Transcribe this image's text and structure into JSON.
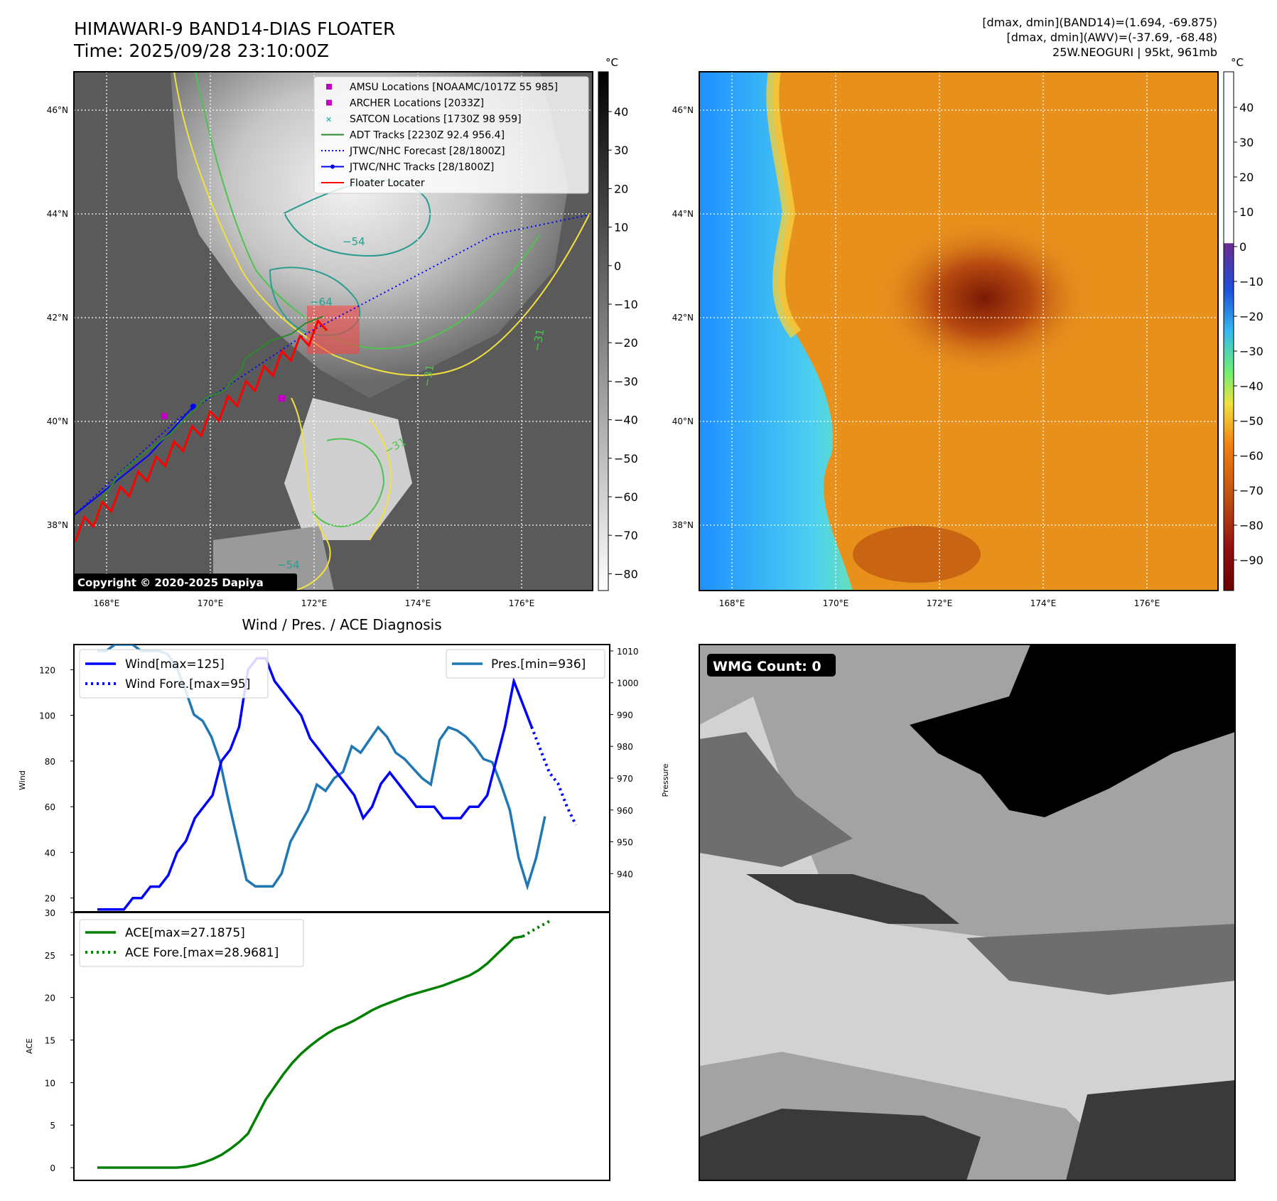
{
  "header": {
    "title_line1": "HIMAWARI-9 BAND14-DIAS FLOATER",
    "title_line2": "Time: 2025/09/28 23:10:00Z",
    "stats_line1": "[dmax, dmin](BAND14)=(1.694, -69.875)",
    "stats_line2": "[dmax, dmin](AWV)=(-37.69, -68.48)",
    "stats_line3": "25W.NEOGURI | 95kt, 961mb"
  },
  "colors": {
    "wind": "#0000ff",
    "pres": "#1f77b4",
    "ace": "#008000",
    "track_red": "#ff0000",
    "adt": "#2a8a2a",
    "contour_yellow": "#f2e040",
    "contour_green": "#4fc34f",
    "contour_teal": "#2a9d8f",
    "marker_magenta": "#c000c0",
    "marker_cyan": "#00b0b0"
  },
  "map_ir": {
    "lat_labels": [
      "46°N",
      "44°N",
      "42°N",
      "40°N",
      "38°N"
    ],
    "lon_labels": [
      "168°E",
      "170°E",
      "172°E",
      "174°E",
      "176°E"
    ],
    "colorbar_unit": "°C",
    "colorbar_ticks": [
      "40",
      "30",
      "20",
      "10",
      "0",
      "−10",
      "−20",
      "−30",
      "−40",
      "−50",
      "−60",
      "−70",
      "−80"
    ],
    "copyright": "Copyright © 2020-2025 Dapiya",
    "contour_labels": [
      "−54",
      "−64",
      "−31",
      "−31",
      "−31",
      "−54"
    ],
    "legend": [
      {
        "label": "AMSU Locations [NOAAMC/1017Z 55 985]",
        "kind": "square",
        "color": "#c000c0"
      },
      {
        "label": "ARCHER Locations [2033Z]",
        "kind": "square",
        "color": "#c000c0"
      },
      {
        "label": "SATCON Locations [1730Z 98 959]",
        "kind": "x",
        "color": "#00b0b0"
      },
      {
        "label": "ADT Tracks [2230Z 92.4 956.4]",
        "kind": "line",
        "color": "#2a8a2a"
      },
      {
        "label": "JTWC/NHC Forecast [28/1800Z]",
        "kind": "dotted",
        "color": "#0000ff"
      },
      {
        "label": "JTWC/NHC Tracks [28/1800Z]",
        "kind": "dotline",
        "color": "#0000ff"
      },
      {
        "label": "Floater Locater",
        "kind": "line",
        "color": "#ff0000"
      }
    ]
  },
  "map_awv": {
    "lat_labels": [
      "46°N",
      "44°N",
      "42°N",
      "40°N",
      "38°N"
    ],
    "lon_labels": [
      "168°E",
      "170°E",
      "172°E",
      "174°E",
      "176°E"
    ],
    "colorbar_unit": "°C",
    "colorbar_ticks": [
      "40",
      "30",
      "20",
      "10",
      "0",
      "−10",
      "−20",
      "−30",
      "−40",
      "−50",
      "−60",
      "−70",
      "−80",
      "−90"
    ]
  },
  "wmg": {
    "label": "WMG Count: 0"
  },
  "chart_data": [
    {
      "type": "line",
      "title": "Wind / Pres. / ACE Diagnosis",
      "ylabel": "Wind",
      "ylim": [
        14,
        131
      ],
      "yticks": [
        20,
        40,
        60,
        80,
        100,
        120
      ],
      "series": [
        {
          "name": "Wind[max=125]",
          "style": "solid",
          "values": [
            15,
            15,
            15,
            15,
            20,
            20,
            25,
            25,
            30,
            40,
            45,
            55,
            60,
            65,
            80,
            85,
            95,
            120,
            125,
            125,
            115,
            110,
            105,
            100,
            90,
            85,
            80,
            75,
            70,
            65,
            55,
            60,
            70,
            75,
            70,
            65,
            60,
            60,
            60,
            55,
            55,
            55,
            60,
            60,
            65,
            80,
            95,
            115,
            105,
            95
          ]
        },
        {
          "name": "Wind Fore.[max=95]",
          "style": "dotted",
          "values": [
            95,
            85,
            75,
            70,
            60,
            52
          ]
        }
      ],
      "secondary": {
        "ylabel": "Pressure",
        "ylim": [
          928,
          1012
        ],
        "yticks": [
          940,
          950,
          960,
          970,
          980,
          990,
          1000,
          1010
        ],
        "series": [
          {
            "name": "Pres.[min=936]",
            "values": [
              1010,
              1010,
              1012,
              1012,
              1012,
              1010,
              1010,
              1010,
              1009,
              1005,
              998,
              990,
              988,
              983,
              975,
              962,
              950,
              938,
              936,
              936,
              936,
              940,
              950,
              955,
              960,
              968,
              966,
              970,
              972,
              980,
              978,
              982,
              986,
              983,
              978,
              976,
              973,
              970,
              968,
              982,
              986,
              985,
              983,
              980,
              976,
              975,
              968,
              960,
              945,
              936,
              945,
              958
            ]
          }
        ]
      }
    },
    {
      "type": "line",
      "ylabel": "ACE",
      "ylim": [
        -1.5,
        30
      ],
      "yticks": [
        0,
        5,
        10,
        15,
        20,
        25,
        30
      ],
      "series": [
        {
          "name": "ACE[max=27.1875]",
          "style": "solid",
          "values": [
            0,
            0,
            0,
            0,
            0,
            0,
            0,
            0,
            0,
            0,
            0.1,
            0.3,
            0.6,
            1,
            1.5,
            2.2,
            3,
            4,
            6,
            8,
            9.5,
            11,
            12.3,
            13.4,
            14.3,
            15.1,
            15.8,
            16.4,
            16.8,
            17.3,
            17.9,
            18.5,
            19,
            19.4,
            19.8,
            20.2,
            20.5,
            20.8,
            21.1,
            21.4,
            21.8,
            22.2,
            22.6,
            23.2,
            24,
            25,
            26,
            27,
            27.1875
          ]
        },
        {
          "name": "ACE Fore.[max=28.9681]",
          "style": "dotted",
          "values": [
            27.1875,
            27.8,
            28.4,
            28.9681
          ]
        }
      ]
    }
  ]
}
